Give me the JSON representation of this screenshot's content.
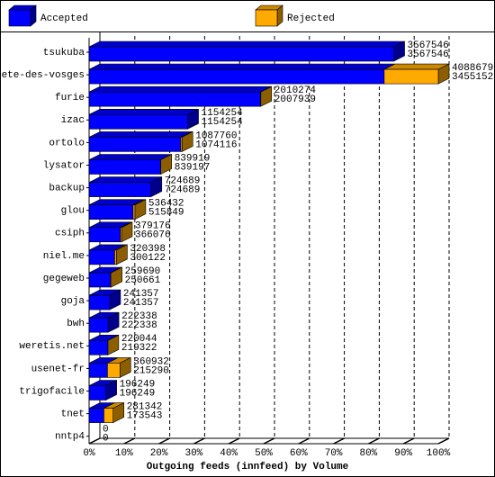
{
  "chart_data": {
    "type": "bar3d",
    "orientation": "horizontal",
    "stacked": true,
    "x_label": "Outgoing feeds (innfeed) by Volume",
    "categories": [
      "tsukuba",
      "bete-des-vosges",
      "furie",
      "izac",
      "ortolo",
      "lysator",
      "backup",
      "glou",
      "csiph",
      "niel.me",
      "gegeweb",
      "goja",
      "bwh",
      "weretis.net",
      "usenet-fr",
      "trigofacile",
      "tnet",
      "nntp4"
    ],
    "series": [
      {
        "name": "Accepted",
        "color": "#0000ff",
        "values": [
          3567546,
          3455152,
          2007939,
          1154254,
          1074116,
          839197,
          724689,
          515849,
          366076,
          300122,
          250661,
          241357,
          222338,
          219322,
          215290,
          196249,
          173543,
          0
        ]
      },
      {
        "name": "Rejected",
        "color": "#ffaa00",
        "values": [
          0,
          633527,
          2335,
          0,
          13644,
          722,
          0,
          20583,
          13100,
          20276,
          9029,
          0,
          0,
          722,
          145642,
          0,
          107799,
          0
        ]
      }
    ],
    "totals": [
      3567546,
      4088679,
      2010274,
      1154254,
      1087760,
      839919,
      724689,
      536432,
      379176,
      320398,
      259690,
      241357,
      222338,
      220044,
      360932,
      196249,
      281342,
      0
    ],
    "xlim": [
      0,
      4088679
    ],
    "xticks": [
      {
        "value": 0,
        "label": "0%"
      },
      {
        "value": 408867.9,
        "label": "10%"
      },
      {
        "value": 817735.8,
        "label": "20%"
      },
      {
        "value": 1226603.7,
        "label": "30%"
      },
      {
        "value": 1635471.6,
        "label": "40%"
      },
      {
        "value": 2044339.5,
        "label": "50%"
      },
      {
        "value": 2453207.4,
        "label": "60%"
      },
      {
        "value": 2862075.3,
        "label": "70%"
      },
      {
        "value": 3270943.2,
        "label": "80%"
      },
      {
        "value": 3679811.1,
        "label": "90%"
      },
      {
        "value": 4088679,
        "label": "100%"
      }
    ],
    "grid": true
  }
}
